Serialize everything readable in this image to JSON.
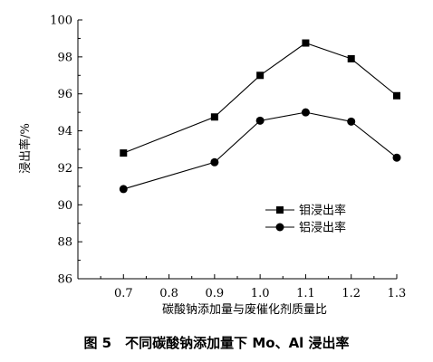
{
  "chart_data": {
    "type": "line",
    "x": [
      0.7,
      0.9,
      1.0,
      1.1,
      1.2,
      1.3
    ],
    "series": [
      {
        "name": "钼浸出率",
        "marker": "square",
        "values": [
          92.8,
          94.75,
          97.0,
          98.75,
          97.9,
          95.9
        ]
      },
      {
        "name": "铝浸出率",
        "marker": "circle",
        "values": [
          90.85,
          92.3,
          94.55,
          95.0,
          94.5,
          92.55
        ]
      }
    ],
    "xlabel": "碳酸钠添加量与废催化剂质量比",
    "ylabel": "浸出率/%",
    "xlim": [
      0.6,
      1.3
    ],
    "ylim": [
      86,
      100
    ],
    "xticks": [
      "0.7",
      "0.8",
      "0.9",
      "1.0",
      "1.1",
      "1.2",
      "1.3"
    ],
    "yticks": [
      "86",
      "88",
      "90",
      "92",
      "94",
      "96",
      "98",
      "100"
    ],
    "legend_position": "lower-right",
    "grid": false,
    "line_color": "#000000"
  },
  "caption": "图 5　不同碳酸钠添加量下 Mo、Al 浸出率"
}
